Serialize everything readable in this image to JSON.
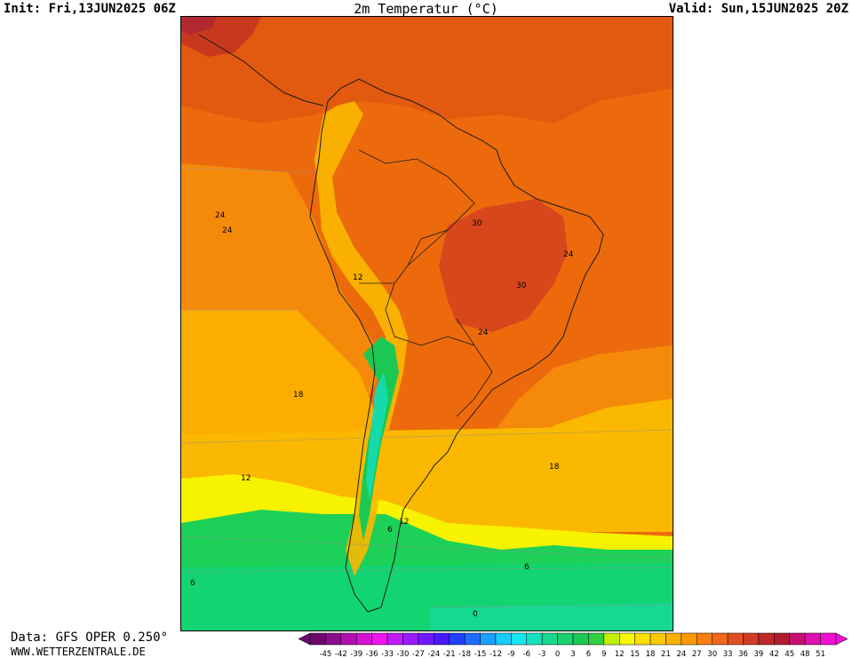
{
  "header": {
    "init": "Init: Fri,13JUN2025 06Z",
    "title": "2m Temperatur (°C)",
    "valid": "Valid: Sun,15JUN2025 20Z"
  },
  "footer": {
    "model": "Data: GFS OPER 0.250°",
    "site": "WWW.WETTERZENTRALE.DE"
  },
  "map": {
    "region": "South America",
    "variable": "2m temperature",
    "contour_labels": [
      "24",
      "24",
      "30",
      "24",
      "12",
      "30",
      "24",
      "18",
      "18",
      "12",
      "12",
      "6",
      "6",
      "6",
      "0"
    ]
  },
  "legend": {
    "ticks": [
      "-45",
      "-42",
      "-39",
      "-36",
      "-33",
      "-30",
      "-27",
      "-24",
      "-21",
      "-18",
      "-15",
      "-12",
      "-9",
      "-6",
      "-3",
      "0",
      "3",
      "6",
      "9",
      "12",
      "15",
      "18",
      "21",
      "24",
      "27",
      "30",
      "33",
      "36",
      "39",
      "42",
      "45",
      "48",
      "51"
    ],
    "colors": [
      "#6b0a6b",
      "#8a0e8a",
      "#b010b0",
      "#d412d4",
      "#f014f0",
      "#c01aff",
      "#9a1aff",
      "#7018ff",
      "#4818ff",
      "#2040ff",
      "#1e6cff",
      "#1aa0ff",
      "#18ccff",
      "#16e6f0",
      "#14e0c0",
      "#18d890",
      "#1ad070",
      "#1cc854",
      "#30d040",
      "#c0f000",
      "#f8f800",
      "#fce000",
      "#fcc800",
      "#fcb000",
      "#fc9800",
      "#f88010",
      "#f06818",
      "#e05020",
      "#d03c24",
      "#c02828",
      "#b01c30",
      "#c81070",
      "#e010b0",
      "#f010d0"
    ]
  }
}
